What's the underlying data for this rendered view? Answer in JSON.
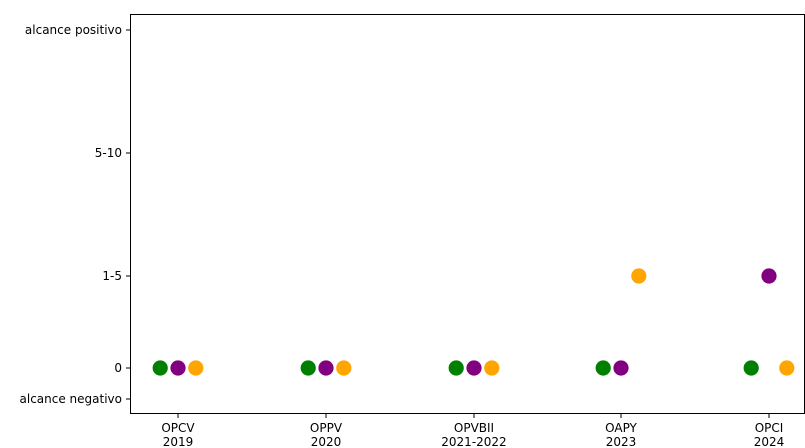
{
  "chart_data": {
    "type": "scatter",
    "y_categories": [
      "alcance negativo",
      "0",
      "1-5",
      "5-10",
      "alcance positivo"
    ],
    "categories": [
      {
        "line1": "OPCV",
        "line2": "2019"
      },
      {
        "line1": "OPPV",
        "line2": "2020"
      },
      {
        "line1": "OPVBII",
        "line2": "2021-2022"
      },
      {
        "line1": "OAPY",
        "line2": "2023"
      },
      {
        "line1": "OPCI",
        "line2": "2024"
      }
    ],
    "series": [
      {
        "color": "#008000",
        "values": [
          "0",
          "0",
          "0",
          "0",
          "0"
        ]
      },
      {
        "color": "#800080",
        "values": [
          "0",
          "0",
          "0",
          "0",
          "1-5"
        ]
      },
      {
        "color": "#FFA500",
        "values": [
          "0",
          "0",
          "0",
          "1-5",
          "0"
        ]
      }
    ],
    "grid": false,
    "legend": "none"
  }
}
